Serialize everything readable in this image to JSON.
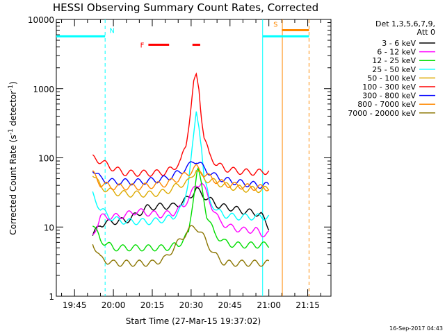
{
  "chart_data": {
    "type": "line",
    "title": "HESSI Observing Summary Count Rates, Corrected",
    "xlabel": "Start Time (27-Mar-15 19:37:02)",
    "ylabel": "Corrected Count Rate (s⁻¹ detector⁻¹)",
    "ylabel_pre": "Corrected Count Rate (s",
    "ylabel_mid": " detector",
    "ylabel_post": ")",
    "ylabel_sup": "-1",
    "x_range_minutes": [
      -7.03,
      98.97
    ],
    "y_range": [
      1,
      10000
    ],
    "y_scale": "log",
    "x_tick_labels": [
      "19:45",
      "20:00",
      "20:15",
      "20:30",
      "20:45",
      "21:00",
      "21:15"
    ],
    "x_tick_minutes": [
      0,
      15,
      30,
      45,
      60,
      75,
      90
    ],
    "y_tick_labels": [
      "1",
      "10",
      "100",
      "1000",
      "10000"
    ],
    "y_tick_values": [
      1,
      10,
      100,
      1000,
      10000
    ],
    "legend_header": [
      "Det 1,3,5,6,7,9,",
      "Att 0"
    ],
    "legend_position": "right",
    "series": [
      {
        "name": "3 - 6 keV",
        "color": "#000000",
        "x": [
          7,
          10,
          15,
          20,
          24,
          28,
          33,
          38,
          42,
          45,
          47,
          49,
          52,
          56,
          60,
          65,
          70,
          72,
          75
        ],
        "y": [
          7.5,
          11,
          12,
          12.5,
          15,
          19,
          20,
          20,
          23,
          29,
          35,
          30,
          25,
          20,
          19,
          17,
          16,
          15,
          10
        ]
      },
      {
        "name": "6 - 12 keV",
        "color": "#ff00ff",
        "x": [
          7,
          10,
          15,
          20,
          24,
          28,
          33,
          38,
          42,
          45,
          47,
          49,
          51,
          53,
          56,
          60,
          65,
          70,
          72,
          75
        ],
        "y": [
          7.5,
          14,
          14,
          15,
          17,
          16,
          15,
          16,
          20,
          30,
          40,
          45,
          30,
          20,
          12,
          10,
          9,
          9,
          8,
          8
        ]
      },
      {
        "name": "12 - 25 keV",
        "color": "#00dd00",
        "x": [
          7,
          10,
          15,
          20,
          25,
          30,
          35,
          40,
          44,
          46,
          47.5,
          49,
          51,
          54,
          58,
          62,
          67,
          72,
          75
        ],
        "y": [
          11,
          6.5,
          5,
          5,
          5,
          5,
          5,
          5.5,
          8,
          30,
          70,
          40,
          15,
          8,
          6,
          5.5,
          5.5,
          5.5,
          5.5
        ]
      },
      {
        "name": "25 - 50 keV",
        "color": "#00ffff",
        "x": [
          7,
          10,
          15,
          20,
          25,
          30,
          35,
          38,
          42,
          44,
          46,
          47,
          48,
          49,
          50,
          52,
          55,
          58,
          62,
          67,
          72,
          75
        ],
        "y": [
          30,
          18,
          13,
          12,
          12,
          12,
          13,
          14,
          20,
          50,
          200,
          450,
          300,
          150,
          50,
          25,
          17,
          15,
          14,
          14,
          14,
          14
        ]
      },
      {
        "name": "50 - 100 keV",
        "color": "#ddaa00",
        "x": [
          7,
          10,
          15,
          20,
          25,
          30,
          35,
          40,
          44,
          46,
          47,
          48,
          50,
          54,
          58,
          62,
          67,
          72,
          75
        ],
        "y": [
          60,
          38,
          32,
          30,
          30,
          30,
          32,
          40,
          45,
          60,
          70,
          60,
          50,
          45,
          40,
          37,
          35,
          35,
          35
        ]
      },
      {
        "name": "100 - 300 keV",
        "color": "#ff0000",
        "x": [
          7,
          10,
          15,
          20,
          25,
          30,
          35,
          38,
          41,
          43,
          44.5,
          46,
          47,
          48,
          49,
          50,
          52,
          55,
          58,
          62,
          67,
          72,
          75
        ],
        "y": [
          100,
          90,
          70,
          60,
          60,
          60,
          62,
          70,
          90,
          150,
          400,
          1200,
          1500,
          1000,
          400,
          200,
          110,
          80,
          70,
          65,
          62,
          62,
          65
        ]
      },
      {
        "name": "300 - 800 keV",
        "color": "#0000ff",
        "x": [
          7,
          10,
          15,
          20,
          25,
          30,
          35,
          40,
          44,
          46,
          47,
          48,
          50,
          54,
          58,
          62,
          67,
          72,
          75
        ],
        "y": [
          70,
          50,
          45,
          45,
          45,
          47,
          50,
          60,
          75,
          90,
          92,
          85,
          70,
          55,
          48,
          45,
          42,
          40,
          40
        ]
      },
      {
        "name": "800 - 7000 keV",
        "color": "#ff8800",
        "x": [
          7,
          10,
          15,
          20,
          25,
          30,
          35,
          40,
          44,
          46,
          47,
          48,
          50,
          54,
          58,
          62,
          67,
          72,
          75
        ],
        "y": [
          60,
          42,
          38,
          38,
          38,
          40,
          42,
          50,
          60,
          70,
          72,
          68,
          58,
          48,
          42,
          40,
          38,
          37,
          37
        ]
      },
      {
        "name": "7000 - 20000 keV",
        "color": "#8b7500",
        "x": [
          7,
          10,
          15,
          20,
          25,
          30,
          35,
          40,
          44,
          46,
          47,
          48,
          50,
          54,
          58,
          62,
          67,
          72,
          75
        ],
        "y": [
          6,
          3.5,
          3,
          3,
          3,
          3,
          3.5,
          6,
          9,
          10,
          10,
          9,
          7,
          4,
          3,
          3,
          3,
          3,
          3
        ]
      }
    ],
    "flags": [
      {
        "label": "N",
        "color": "#00ffff",
        "segments": [
          [
            -7.03,
            11.8
          ],
          [
            72.6,
            90.5
          ]
        ],
        "y": 5700
      },
      {
        "label": "F",
        "color": "#ff0000",
        "segments": [
          [
            28.5,
            36.5
          ],
          [
            45.5,
            48.5
          ]
        ],
        "y": 4300
      },
      {
        "label": "S",
        "color": "#ff8800",
        "segments": [
          [
            80,
            90.5
          ]
        ],
        "y": 7000
      }
    ],
    "vlines": [
      {
        "x": 11.8,
        "color": "#00ffff",
        "style": "dashed"
      },
      {
        "x": 72.6,
        "color": "#00ffff",
        "style": "solid"
      },
      {
        "x": 80.2,
        "color": "#ff8800",
        "style": "solid"
      },
      {
        "x": 90.5,
        "color": "#ff8800",
        "style": "dashed"
      }
    ],
    "timestamp": "16-Sep-2017 04:43"
  }
}
